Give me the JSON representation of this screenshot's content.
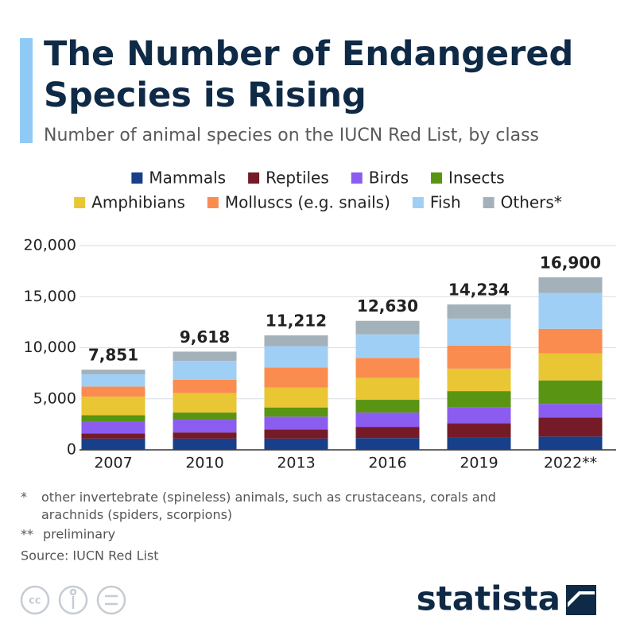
{
  "chart_data": {
    "type": "stacked_bar",
    "title": "The Number of Endangered Species is Rising",
    "subtitle": "Number of animal species on the IUCN Red List, by class",
    "categories": [
      "2007",
      "2010",
      "2013",
      "2016",
      "2019",
      "2022**"
    ],
    "series": [
      {
        "name": "Mammals",
        "color": "#173f8a",
        "values": [
          1100,
          1100,
          1100,
          1150,
          1200,
          1300
        ]
      },
      {
        "name": "Reptiles",
        "color": "#751b27",
        "values": [
          500,
          600,
          900,
          1100,
          1400,
          1850
        ]
      },
      {
        "name": "Birds",
        "color": "#8b5cf0",
        "values": [
          1200,
          1250,
          1250,
          1400,
          1550,
          1350
        ]
      },
      {
        "name": "Insects",
        "color": "#5a9413",
        "values": [
          600,
          700,
          900,
          1250,
          1600,
          2300
        ]
      },
      {
        "name": "Amphibians",
        "color": "#e9c633",
        "values": [
          1800,
          1900,
          1950,
          2150,
          2200,
          2650
        ]
      },
      {
        "name": "Molluscs (e.g. snails)",
        "color": "#fa8c50",
        "values": [
          1000,
          1300,
          1950,
          1950,
          2250,
          2400
        ]
      },
      {
        "name": "Fish",
        "color": "#a0cff5",
        "values": [
          1200,
          1850,
          2100,
          2300,
          2650,
          3500
        ]
      },
      {
        "name": "Others*",
        "color": "#a3b1bb",
        "values": [
          451,
          918,
          1062,
          1330,
          1384,
          1550
        ]
      }
    ],
    "totals": [
      7851,
      9618,
      11212,
      12630,
      14234,
      16900
    ],
    "total_labels": [
      "7,851",
      "9,618",
      "11,212",
      "12,630",
      "14,234",
      "16,900"
    ],
    "ylim": [
      0,
      20000
    ],
    "yticks": [
      0,
      {
        "value": 5000,
        "label": "5,000"
      },
      {
        "value": 10000,
        "label": "10,000"
      },
      {
        "value": 15000,
        "label": "15,000"
      },
      {
        "value": 20000,
        "label": "20,000"
      }
    ],
    "grid": true,
    "footnotes": [
      {
        "mark": "*",
        "text": "other invertebrate (spineless) animals, such as crustaceans, corals and arachnids (spiders, scorpions)"
      },
      {
        "mark": "**",
        "text": "preliminary"
      }
    ],
    "source": "Source: IUCN Red List",
    "brand": "statista"
  }
}
